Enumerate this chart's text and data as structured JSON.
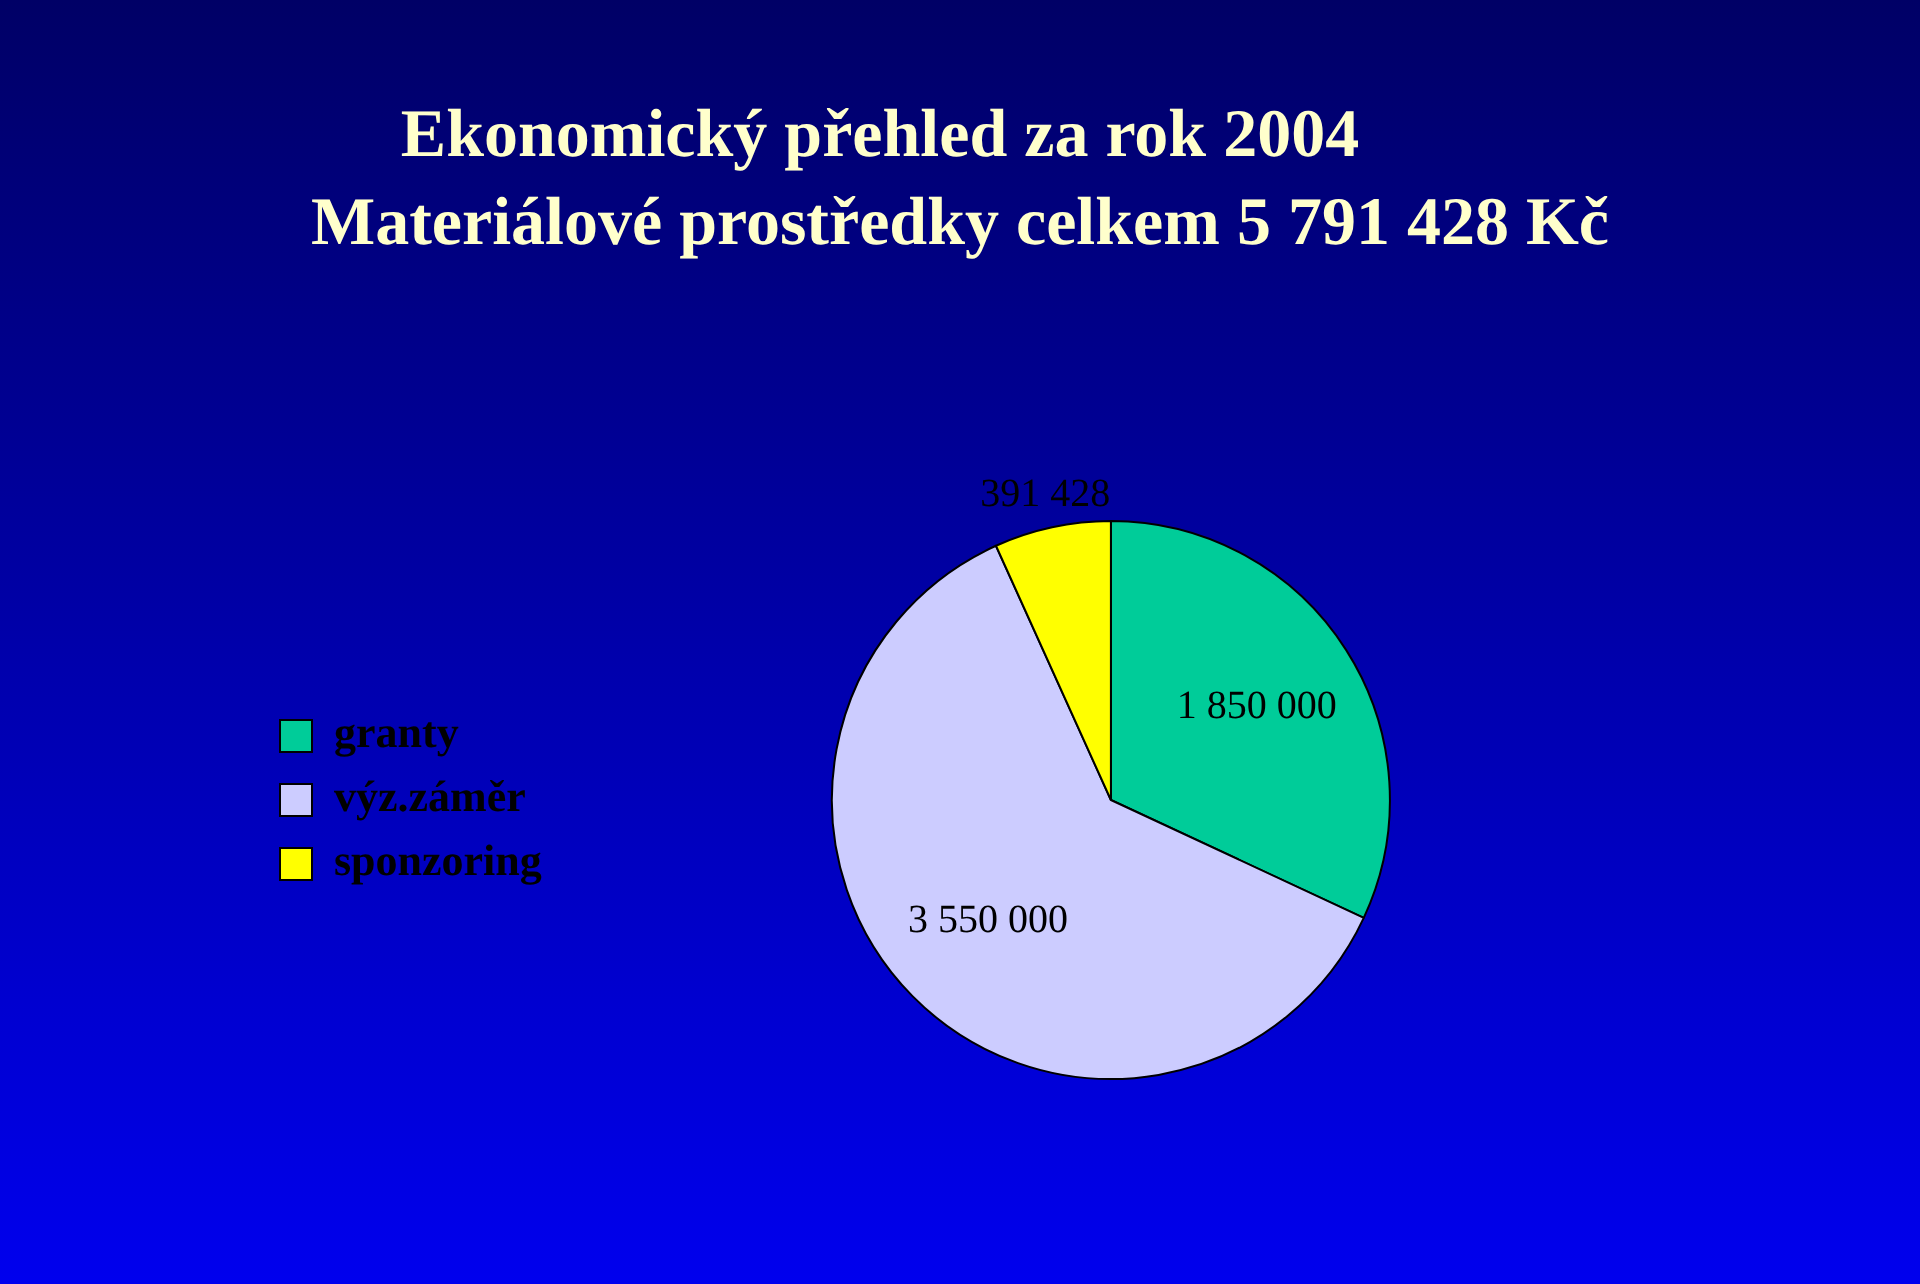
{
  "chart_data": {
    "type": "pie",
    "title": "Ekonomický přehled  za rok 2004",
    "subtitle": "Materiálové prostředky celkem 5 791 428 Kč",
    "categories": [
      "granty",
      "výz.záměr",
      "sponzoring"
    ],
    "values": [
      1850000,
      3550000,
      391428
    ],
    "value_labels": [
      "1 850 000",
      "3 550 000",
      "391 428"
    ],
    "colors": [
      "#00cc99",
      "#ccccff",
      "#ffff00"
    ],
    "legend": "left"
  }
}
